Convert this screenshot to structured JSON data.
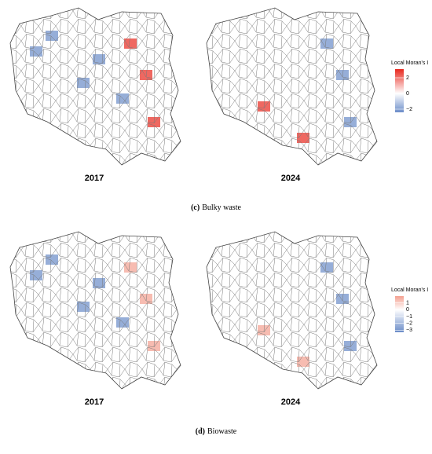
{
  "panels": [
    {
      "letter": "(c)",
      "caption": "Bulky waste",
      "maps": [
        {
          "year": "2017"
        },
        {
          "year": "2024"
        }
      ],
      "legend": {
        "title": "Local Moran's I",
        "lim": [
          -2.4,
          3.1
        ],
        "ticks": [
          2,
          0,
          {
            "value": -2,
            "label": "−2"
          }
        ],
        "colors": [
          "#6a8cc8",
          "#ffffff",
          "#e8281e"
        ]
      }
    },
    {
      "letter": "(d)",
      "caption": "Biowaste",
      "maps": [
        {
          "year": "2017"
        },
        {
          "year": "2024"
        }
      ],
      "legend": {
        "title": "Local Moran's I",
        "lim": [
          -3.3,
          2
        ],
        "ticks": [
          1,
          0,
          {
            "value": -1,
            "label": "−1"
          },
          {
            "value": -2,
            "label": "−2"
          },
          {
            "value": -3,
            "label": "−3"
          }
        ],
        "colors": [
          "#6a8cc8",
          "#ffffff",
          "#f4a090"
        ]
      }
    }
  ]
}
